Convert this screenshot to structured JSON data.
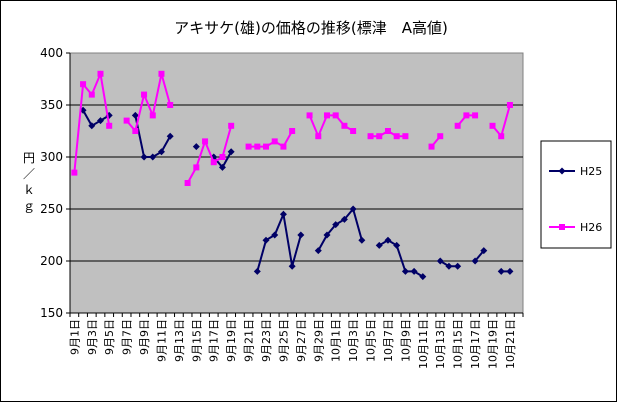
{
  "chart_data": {
    "type": "line",
    "title": "アキサケ(雄)の価格の推移(標津　A高値)",
    "ylabel": "円／ｋｇ",
    "xlabel": "",
    "ylim": [
      150,
      400
    ],
    "yticks": [
      150,
      200,
      250,
      300,
      350,
      400
    ],
    "grid": true,
    "legend_position": "right",
    "categories": [
      "9月1日",
      "9月2日",
      "9月3日",
      "9月4日",
      "9月5日",
      "9月6日",
      "9月7日",
      "9月8日",
      "9月9日",
      "9月10日",
      "9月11日",
      "9月12日",
      "9月13日",
      "9月14日",
      "9月15日",
      "9月16日",
      "9月17日",
      "9月18日",
      "9月19日",
      "9月20日",
      "9月21日",
      "9月22日",
      "9月23日",
      "9月24日",
      "9月25日",
      "9月26日",
      "9月27日",
      "9月28日",
      "9月29日",
      "9月30日",
      "10月1日",
      "10月2日",
      "10月3日",
      "10月4日",
      "10月5日",
      "10月6日",
      "10月7日",
      "10月8日",
      "10月9日",
      "10月10日",
      "10月11日",
      "10月12日",
      "10月13日",
      "10月14日",
      "10月15日",
      "10月16日",
      "10月17日",
      "10月18日",
      "10月19日",
      "10月20日",
      "10月21日",
      "10月22日"
    ],
    "tick_labels": [
      "9月1日",
      "9月3日",
      "9月5日",
      "9月7日",
      "9月9日",
      "9月11日",
      "9月13日",
      "9月15日",
      "9月17日",
      "9月19日",
      "9月21日",
      "9月23日",
      "9月25日",
      "9月27日",
      "9月29日",
      "10月1日",
      "10月3日",
      "10月5日",
      "10月7日",
      "10月9日",
      "10月11日",
      "10月13日",
      "10月15日",
      "10月17日",
      "10月19日",
      "10月21日"
    ],
    "series": [
      {
        "name": "H25",
        "color": "#000066",
        "marker": "diamond",
        "values": [
          null,
          345,
          330,
          335,
          340,
          null,
          null,
          340,
          300,
          300,
          305,
          320,
          null,
          null,
          310,
          null,
          300,
          290,
          305,
          null,
          null,
          190,
          220,
          225,
          245,
          195,
          225,
          null,
          210,
          225,
          235,
          240,
          250,
          220,
          null,
          215,
          220,
          215,
          190,
          190,
          185,
          null,
          200,
          195,
          195,
          null,
          200,
          210,
          null,
          190,
          190,
          null
        ]
      },
      {
        "name": "H26",
        "color": "#ff00ff",
        "marker": "square",
        "values": [
          285,
          370,
          360,
          380,
          330,
          null,
          335,
          325,
          360,
          340,
          380,
          350,
          null,
          275,
          290,
          315,
          295,
          300,
          330,
          null,
          310,
          310,
          310,
          315,
          310,
          325,
          null,
          340,
          320,
          340,
          340,
          330,
          325,
          null,
          320,
          320,
          325,
          320,
          320,
          null,
          null,
          310,
          320,
          null,
          330,
          340,
          340,
          null,
          330,
          320,
          350,
          null
        ]
      }
    ]
  }
}
